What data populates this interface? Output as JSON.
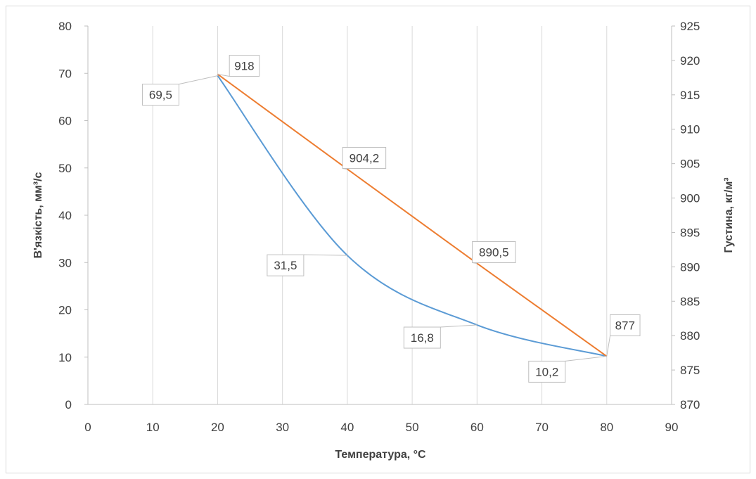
{
  "chart_data": {
    "type": "line",
    "title": "",
    "xlabel": "Температура, °С",
    "ylabel_left": "В'язкість, мм³/с",
    "ylabel_right": "Густина, кг/м³",
    "xlim": [
      0,
      90
    ],
    "ylim_left": [
      0,
      80
    ],
    "ylim_right": [
      870,
      925
    ],
    "x_ticks": [
      "0",
      "10",
      "20",
      "30",
      "40",
      "50",
      "60",
      "70",
      "80",
      "90"
    ],
    "y_left_ticks": [
      "0",
      "10",
      "20",
      "30",
      "40",
      "50",
      "60",
      "70",
      "80"
    ],
    "y_right_ticks": [
      "870",
      "875",
      "880",
      "885",
      "890",
      "895",
      "900",
      "905",
      "910",
      "915",
      "920",
      "925"
    ],
    "grid": "vertical",
    "legend": "none",
    "series": [
      {
        "axis": "left",
        "color": "#5b9bd5",
        "smooth": true,
        "x": [
          20,
          40,
          60,
          80
        ],
        "values": [
          69.5,
          31.5,
          16.8,
          10.2
        ],
        "labels": [
          "69,5",
          "31,5",
          "16,8",
          "10,2"
        ]
      },
      {
        "axis": "right",
        "color": "#ed7d31",
        "smooth": false,
        "x": [
          20,
          40,
          60,
          80
        ],
        "values": [
          918,
          904.2,
          890.5,
          877
        ],
        "labels": [
          "918",
          "904,2",
          "890,5",
          "877"
        ]
      }
    ]
  }
}
